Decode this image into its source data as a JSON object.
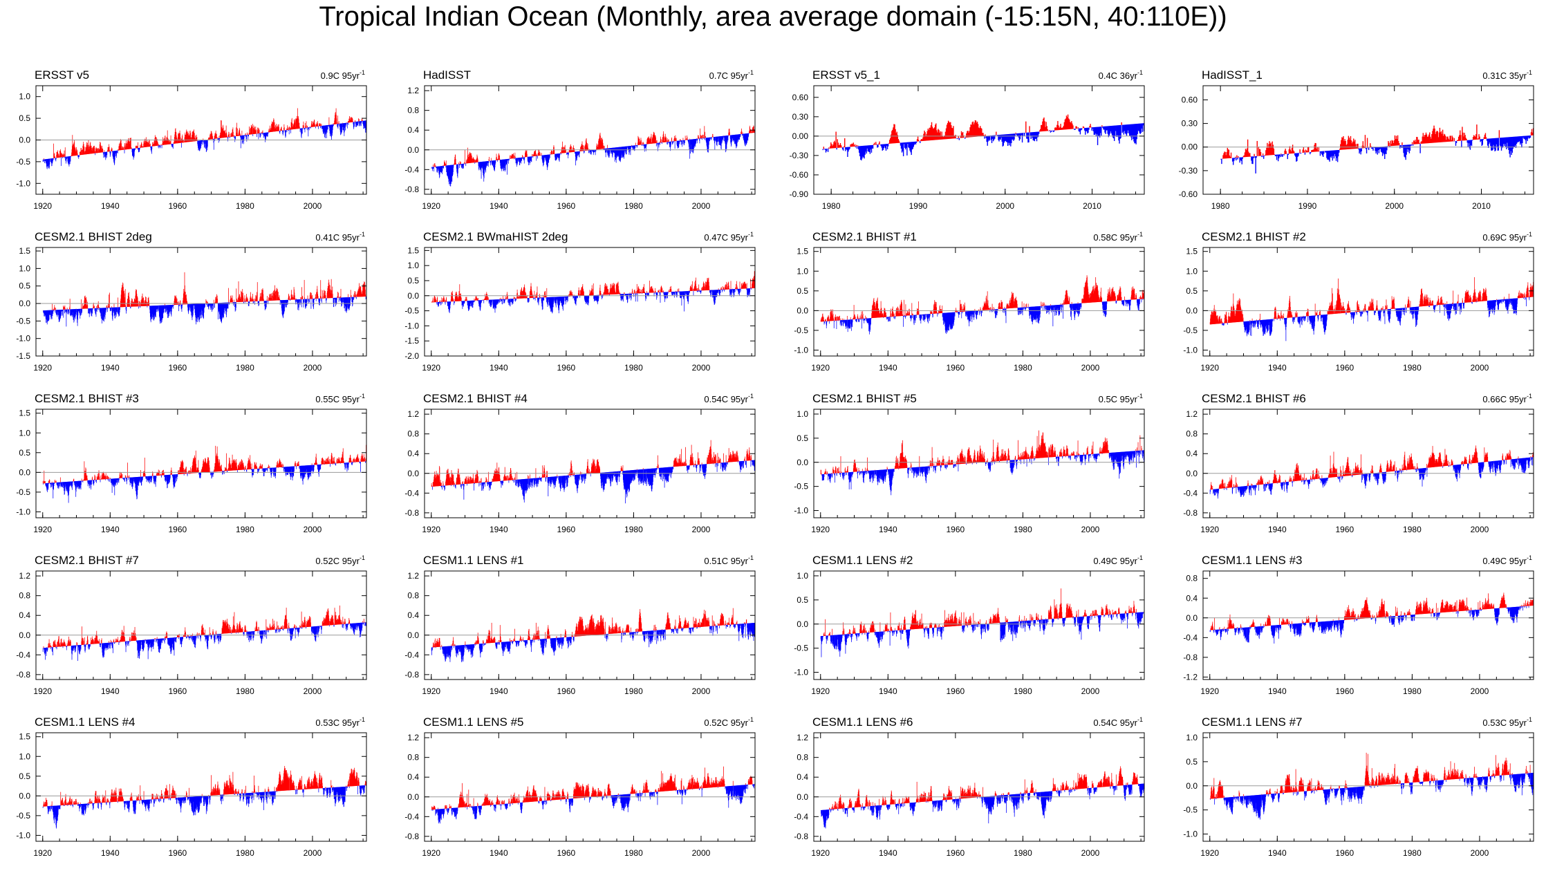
{
  "title": "Tropical Indian Ocean (Monthly, area average domain (-15:15N, 40:110E))",
  "colors": {
    "positive": "#ff0000",
    "negative": "#0000ff",
    "axis": "#000000",
    "zero_line": "#9a9a9a"
  },
  "chart_data": [
    {
      "type": "bar",
      "title": "ERSST v5",
      "trend": "0.9C 95yr",
      "trend_sup": "-1",
      "x_range": [
        1918,
        2016
      ],
      "ylim": [
        -1.25,
        1.25
      ],
      "yticks": [
        1.0,
        0.5,
        0.0,
        -0.5,
        -1.0
      ],
      "ytick_labels": [
        "1.0",
        "0.5",
        "0.0",
        "-0.5",
        "-1.0"
      ],
      "xticks": [
        1920,
        1940,
        1960,
        1980,
        2000
      ],
      "xtick_labels": [
        "1920",
        "1940",
        "1960",
        "1980",
        "2000"
      ],
      "series": {
        "start_year": 1920,
        "end_year": 2015,
        "trend_start": -0.45,
        "trend_end": 0.45,
        "amplitude": 0.35
      }
    },
    {
      "type": "bar",
      "title": "HadISST",
      "trend": "0.7C 95yr",
      "trend_sup": "-1",
      "x_range": [
        1918,
        2016
      ],
      "ylim": [
        -0.9,
        1.3
      ],
      "yticks": [
        1.2,
        0.8,
        0.4,
        0.0,
        -0.4,
        -0.8
      ],
      "ytick_labels": [
        "1.2",
        "0.8",
        "0.4",
        "0.0",
        "-0.4",
        "-0.8"
      ],
      "xticks": [
        1920,
        1940,
        1960,
        1980,
        2000
      ],
      "xtick_labels": [
        "1920",
        "1940",
        "1960",
        "1980",
        "2000"
      ],
      "series": {
        "start_year": 1920,
        "end_year": 2015,
        "trend_start": -0.35,
        "trend_end": 0.35,
        "amplitude": 0.3
      }
    },
    {
      "type": "bar",
      "title": "ERSST v5_1",
      "trend": "0.4C 36yr",
      "trend_sup": "-1",
      "x_range": [
        1978,
        2016
      ],
      "ylim": [
        -0.9,
        0.78
      ],
      "yticks": [
        0.6,
        0.3,
        0.0,
        -0.3,
        -0.6,
        -0.9
      ],
      "ytick_labels": [
        "0.60",
        "0.30",
        "0.00",
        "-0.30",
        "-0.60",
        "-0.90"
      ],
      "xticks": [
        1980,
        1990,
        2000,
        2010
      ],
      "xtick_labels": [
        "1980",
        "1990",
        "2000",
        "2010"
      ],
      "series": {
        "start_year": 1979,
        "end_year": 2015,
        "trend_start": -0.2,
        "trend_end": 0.2,
        "amplitude": 0.25
      }
    },
    {
      "type": "bar",
      "title": "HadISST_1",
      "trend": "0.31C 35yr",
      "trend_sup": "-1",
      "x_range": [
        1978,
        2016
      ],
      "ylim": [
        -0.6,
        0.78
      ],
      "yticks": [
        0.6,
        0.3,
        0.0,
        -0.3,
        -0.6
      ],
      "ytick_labels": [
        "0.60",
        "0.30",
        "0.00",
        "-0.30",
        "-0.60"
      ],
      "xticks": [
        1980,
        1990,
        2000,
        2010
      ],
      "xtick_labels": [
        "1980",
        "1990",
        "2000",
        "2010"
      ],
      "series": {
        "start_year": 1980,
        "end_year": 2015,
        "trend_start": -0.15,
        "trend_end": 0.15,
        "amplitude": 0.25
      }
    },
    {
      "type": "bar",
      "title": "CESM2.1 BHIST 2deg",
      "trend": "0.41C 95yr",
      "trend_sup": "-1",
      "x_range": [
        1918,
        2016
      ],
      "ylim": [
        -1.5,
        1.6
      ],
      "yticks": [
        1.5,
        1.0,
        0.5,
        0.0,
        -0.5,
        -1.0,
        -1.5
      ],
      "ytick_labels": [
        "1.5",
        "1.0",
        "0.5",
        "0.0",
        "-0.5",
        "-1.0",
        "-1.5"
      ],
      "xticks": [
        1920,
        1940,
        1960,
        1980,
        2000
      ],
      "xtick_labels": [
        "1920",
        "1940",
        "1960",
        "1980",
        "2000"
      ],
      "series": {
        "start_year": 1920,
        "end_year": 2015,
        "trend_start": -0.2,
        "trend_end": 0.2,
        "amplitude": 0.55
      }
    },
    {
      "type": "bar",
      "title": "CESM2.1 BWmaHIST 2deg",
      "trend": "0.47C 95yr",
      "trend_sup": "-1",
      "x_range": [
        1918,
        2016
      ],
      "ylim": [
        -2.0,
        1.6
      ],
      "yticks": [
        1.5,
        1.0,
        0.5,
        0.0,
        -0.5,
        -1.0,
        -1.5,
        -2.0
      ],
      "ytick_labels": [
        "1.5",
        "1.0",
        "0.5",
        "0.0",
        "-0.5",
        "-1.0",
        "-1.5",
        "-2.0"
      ],
      "xticks": [
        1920,
        1940,
        1960,
        1980,
        2000
      ],
      "xtick_labels": [
        "1920",
        "1940",
        "1960",
        "1980",
        "2000"
      ],
      "series": {
        "start_year": 1920,
        "end_year": 2015,
        "trend_start": -0.22,
        "trend_end": 0.25,
        "amplitude": 0.5
      }
    },
    {
      "type": "bar",
      "title": "CESM2.1 BHIST #1",
      "trend": "0.58C 95yr",
      "trend_sup": "-1",
      "x_range": [
        1918,
        2016
      ],
      "ylim": [
        -1.15,
        1.6
      ],
      "yticks": [
        1.5,
        1.0,
        0.5,
        0.0,
        -0.5,
        -1.0
      ],
      "ytick_labels": [
        "1.5",
        "1.0",
        "0.5",
        "0.0",
        "-0.5",
        "-1.0"
      ],
      "xticks": [
        1920,
        1940,
        1960,
        1980,
        2000
      ],
      "xtick_labels": [
        "1920",
        "1940",
        "1960",
        "1980",
        "2000"
      ],
      "series": {
        "start_year": 1920,
        "end_year": 2015,
        "trend_start": -0.28,
        "trend_end": 0.3,
        "amplitude": 0.45
      }
    },
    {
      "type": "bar",
      "title": "CESM2.1 BHIST #2",
      "trend": "0.69C 95yr",
      "trend_sup": "-1",
      "x_range": [
        1918,
        2016
      ],
      "ylim": [
        -1.15,
        1.6
      ],
      "yticks": [
        1.5,
        1.0,
        0.5,
        0.0,
        -0.5,
        -1.0
      ],
      "ytick_labels": [
        "1.5",
        "1.0",
        "0.5",
        "0.0",
        "-0.5",
        "-1.0"
      ],
      "xticks": [
        1920,
        1940,
        1960,
        1980,
        2000
      ],
      "xtick_labels": [
        "1920",
        "1940",
        "1960",
        "1980",
        "2000"
      ],
      "series": {
        "start_year": 1920,
        "end_year": 2015,
        "trend_start": -0.35,
        "trend_end": 0.35,
        "amplitude": 0.45
      }
    },
    {
      "type": "bar",
      "title": "CESM2.1 BHIST #3",
      "trend": "0.55C 95yr",
      "trend_sup": "-1",
      "x_range": [
        1918,
        2016
      ],
      "ylim": [
        -1.15,
        1.6
      ],
      "yticks": [
        1.5,
        1.0,
        0.5,
        0.0,
        -0.5,
        -1.0
      ],
      "ytick_labels": [
        "1.5",
        "1.0",
        "0.5",
        "0.0",
        "-0.5",
        "-1.0"
      ],
      "xticks": [
        1920,
        1940,
        1960,
        1980,
        2000
      ],
      "xtick_labels": [
        "1920",
        "1940",
        "1960",
        "1980",
        "2000"
      ],
      "series": {
        "start_year": 1920,
        "end_year": 2015,
        "trend_start": -0.28,
        "trend_end": 0.28,
        "amplitude": 0.4
      }
    },
    {
      "type": "bar",
      "title": "CESM2.1 BHIST #4",
      "trend": "0.54C 95yr",
      "trend_sup": "-1",
      "x_range": [
        1918,
        2016
      ],
      "ylim": [
        -0.9,
        1.3
      ],
      "yticks": [
        1.2,
        0.8,
        0.4,
        0.0,
        -0.4,
        -0.8
      ],
      "ytick_labels": [
        "1.2",
        "0.8",
        "0.4",
        "0.0",
        "-0.4",
        "-0.8"
      ],
      "xticks": [
        1920,
        1940,
        1960,
        1980,
        2000
      ],
      "xtick_labels": [
        "1920",
        "1940",
        "1960",
        "1980",
        "2000"
      ],
      "series": {
        "start_year": 1920,
        "end_year": 2015,
        "trend_start": -0.27,
        "trend_end": 0.27,
        "amplitude": 0.35
      }
    },
    {
      "type": "bar",
      "title": "CESM2.1 BHIST #5",
      "trend": "0.5C 95yr",
      "trend_sup": "-1",
      "x_range": [
        1918,
        2016
      ],
      "ylim": [
        -1.15,
        1.1
      ],
      "yticks": [
        1.0,
        0.5,
        0.0,
        -0.5,
        -1.0
      ],
      "ytick_labels": [
        "1.0",
        "0.5",
        "0.0",
        "-0.5",
        "-1.0"
      ],
      "xticks": [
        1920,
        1940,
        1960,
        1980,
        2000
      ],
      "xtick_labels": [
        "1920",
        "1940",
        "1960",
        "1980",
        "2000"
      ],
      "series": {
        "start_year": 1920,
        "end_year": 2015,
        "trend_start": -0.25,
        "trend_end": 0.25,
        "amplitude": 0.4
      }
    },
    {
      "type": "bar",
      "title": "CESM2.1 BHIST #6",
      "trend": "0.66C 95yr",
      "trend_sup": "-1",
      "x_range": [
        1918,
        2016
      ],
      "ylim": [
        -0.9,
        1.3
      ],
      "yticks": [
        1.2,
        0.8,
        0.4,
        0.0,
        -0.4,
        -0.8
      ],
      "ytick_labels": [
        "1.2",
        "0.8",
        "0.4",
        "0.0",
        "-0.4",
        "-0.8"
      ],
      "xticks": [
        1920,
        1940,
        1960,
        1980,
        2000
      ],
      "xtick_labels": [
        "1920",
        "1940",
        "1960",
        "1980",
        "2000"
      ],
      "series": {
        "start_year": 1920,
        "end_year": 2015,
        "trend_start": -0.33,
        "trend_end": 0.33,
        "amplitude": 0.33
      }
    },
    {
      "type": "bar",
      "title": "CESM2.1 BHIST #7",
      "trend": "0.52C 95yr",
      "trend_sup": "-1",
      "x_range": [
        1918,
        2016
      ],
      "ylim": [
        -0.9,
        1.3
      ],
      "yticks": [
        1.2,
        0.8,
        0.4,
        0.0,
        -0.4,
        -0.8
      ],
      "ytick_labels": [
        "1.2",
        "0.8",
        "0.4",
        "0.0",
        "-0.4",
        "-0.8"
      ],
      "xticks": [
        1920,
        1940,
        1960,
        1980,
        2000
      ],
      "xtick_labels": [
        "1920",
        "1940",
        "1960",
        "1980",
        "2000"
      ],
      "series": {
        "start_year": 1920,
        "end_year": 2015,
        "trend_start": -0.26,
        "trend_end": 0.26,
        "amplitude": 0.33
      }
    },
    {
      "type": "bar",
      "title": "CESM1.1 LENS #1",
      "trend": "0.51C 95yr",
      "trend_sup": "-1",
      "x_range": [
        1918,
        2016
      ],
      "ylim": [
        -0.9,
        1.3
      ],
      "yticks": [
        1.2,
        0.8,
        0.4,
        0.0,
        -0.4,
        -0.8
      ],
      "ytick_labels": [
        "1.2",
        "0.8",
        "0.4",
        "0.0",
        "-0.4",
        "-0.8"
      ],
      "xticks": [
        1920,
        1940,
        1960,
        1980,
        2000
      ],
      "xtick_labels": [
        "1920",
        "1940",
        "1960",
        "1980",
        "2000"
      ],
      "series": {
        "start_year": 1920,
        "end_year": 2015,
        "trend_start": -0.25,
        "trend_end": 0.25,
        "amplitude": 0.35
      }
    },
    {
      "type": "bar",
      "title": "CESM1.1 LENS #2",
      "trend": "0.49C 95yr",
      "trend_sup": "-1",
      "x_range": [
        1918,
        2016
      ],
      "ylim": [
        -1.15,
        1.1
      ],
      "yticks": [
        1.0,
        0.5,
        0.0,
        -0.5,
        -1.0
      ],
      "ytick_labels": [
        "1.0",
        "0.5",
        "0.0",
        "-0.5",
        "-1.0"
      ],
      "xticks": [
        1920,
        1940,
        1960,
        1980,
        2000
      ],
      "xtick_labels": [
        "1920",
        "1940",
        "1960",
        "1980",
        "2000"
      ],
      "series": {
        "start_year": 1920,
        "end_year": 2015,
        "trend_start": -0.25,
        "trend_end": 0.25,
        "amplitude": 0.4
      }
    },
    {
      "type": "bar",
      "title": "CESM1.1 LENS #3",
      "trend": "0.49C 95yr",
      "trend_sup": "-1",
      "x_range": [
        1918,
        2016
      ],
      "ylim": [
        -1.25,
        0.95
      ],
      "yticks": [
        0.8,
        0.4,
        0.0,
        -0.4,
        -0.8,
        -1.2
      ],
      "ytick_labels": [
        "0.8",
        "0.4",
        "0.0",
        "-0.4",
        "-0.8",
        "-1.2"
      ],
      "xticks": [
        1920,
        1940,
        1960,
        1980,
        2000
      ],
      "xtick_labels": [
        "1920",
        "1940",
        "1960",
        "1980",
        "2000"
      ],
      "series": {
        "start_year": 1920,
        "end_year": 2015,
        "trend_start": -0.25,
        "trend_end": 0.25,
        "amplitude": 0.3
      }
    },
    {
      "type": "bar",
      "title": "CESM1.1 LENS #4",
      "trend": "0.53C 95yr",
      "trend_sup": "-1",
      "x_range": [
        1918,
        2016
      ],
      "ylim": [
        -1.15,
        1.6
      ],
      "yticks": [
        1.5,
        1.0,
        0.5,
        0.0,
        -0.5,
        -1.0
      ],
      "ytick_labels": [
        "1.5",
        "1.0",
        "0.5",
        "0.0",
        "-0.5",
        "-1.0"
      ],
      "xticks": [
        1920,
        1940,
        1960,
        1980,
        2000
      ],
      "xtick_labels": [
        "1920",
        "1940",
        "1960",
        "1980",
        "2000"
      ],
      "series": {
        "start_year": 1920,
        "end_year": 2015,
        "trend_start": -0.27,
        "trend_end": 0.27,
        "amplitude": 0.45
      }
    },
    {
      "type": "bar",
      "title": "CESM1.1 LENS #5",
      "trend": "0.52C 95yr",
      "trend_sup": "-1",
      "x_range": [
        1918,
        2016
      ],
      "ylim": [
        -0.9,
        1.3
      ],
      "yticks": [
        1.2,
        0.8,
        0.4,
        0.0,
        -0.4,
        -0.8
      ],
      "ytick_labels": [
        "1.2",
        "0.8",
        "0.4",
        "0.0",
        "-0.4",
        "-0.8"
      ],
      "xticks": [
        1920,
        1940,
        1960,
        1980,
        2000
      ],
      "xtick_labels": [
        "1920",
        "1940",
        "1960",
        "1980",
        "2000"
      ],
      "series": {
        "start_year": 1920,
        "end_year": 2015,
        "trend_start": -0.26,
        "trend_end": 0.26,
        "amplitude": 0.33
      }
    },
    {
      "type": "bar",
      "title": "CESM1.1 LENS #6",
      "trend": "0.54C 95yr",
      "trend_sup": "-1",
      "x_range": [
        1918,
        2016
      ],
      "ylim": [
        -0.9,
        1.3
      ],
      "yticks": [
        1.2,
        0.8,
        0.4,
        0.0,
        -0.4,
        -0.8
      ],
      "ytick_labels": [
        "1.2",
        "0.8",
        "0.4",
        "0.0",
        "-0.4",
        "-0.8"
      ],
      "xticks": [
        1920,
        1940,
        1960,
        1980,
        2000
      ],
      "xtick_labels": [
        "1920",
        "1940",
        "1960",
        "1980",
        "2000"
      ],
      "series": {
        "start_year": 1920,
        "end_year": 2015,
        "trend_start": -0.27,
        "trend_end": 0.27,
        "amplitude": 0.35
      }
    },
    {
      "type": "bar",
      "title": "CESM1.1 LENS #7",
      "trend": "0.53C 95yr",
      "trend_sup": "-1",
      "x_range": [
        1918,
        2016
      ],
      "ylim": [
        -1.15,
        1.1
      ],
      "yticks": [
        1.0,
        0.5,
        0.0,
        -0.5,
        -1.0
      ],
      "ytick_labels": [
        "1.0",
        "0.5",
        "0.0",
        "-0.5",
        "-1.0"
      ],
      "xticks": [
        1920,
        1940,
        1960,
        1980,
        2000
      ],
      "xtick_labels": [
        "1920",
        "1940",
        "1960",
        "1980",
        "2000"
      ],
      "series": {
        "start_year": 1920,
        "end_year": 2015,
        "trend_start": -0.27,
        "trend_end": 0.27,
        "amplitude": 0.38
      }
    }
  ]
}
